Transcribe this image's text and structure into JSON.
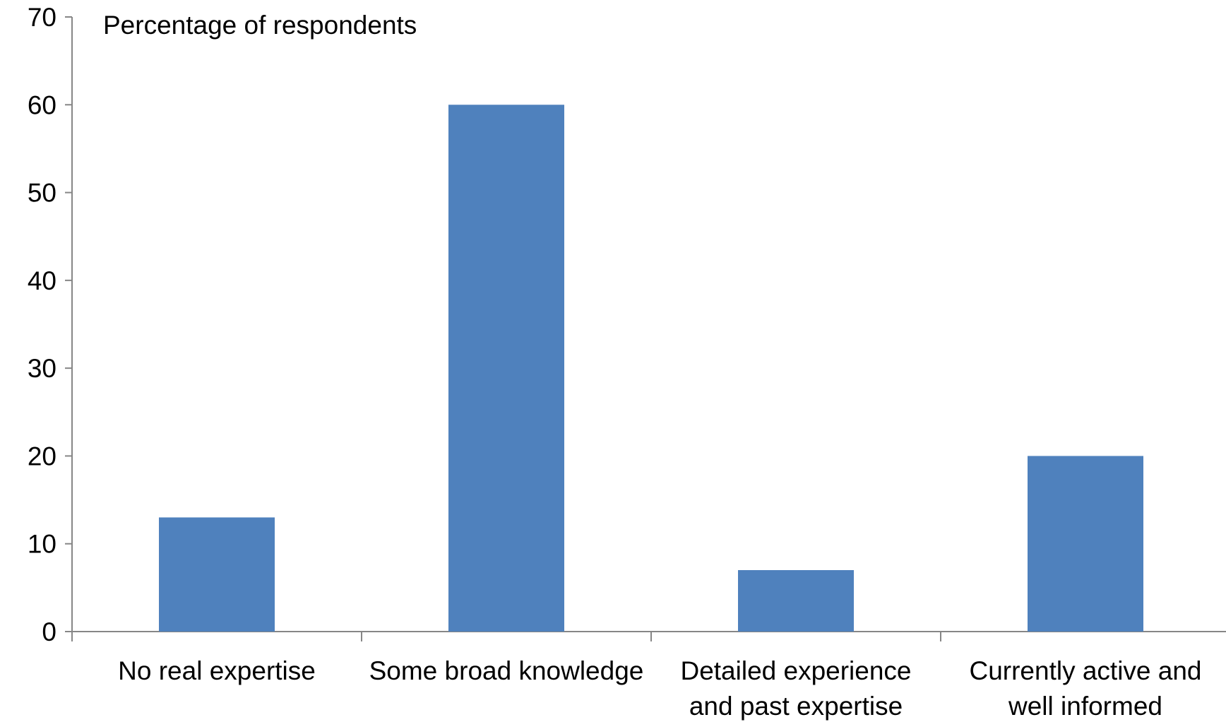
{
  "chart_data": {
    "type": "bar",
    "title": "Percentage of respondents",
    "xlabel": "",
    "ylabel": "",
    "categories": [
      [
        "No real expertise"
      ],
      [
        "Some broad knowledge"
      ],
      [
        "Detailed experience",
        "and past expertise"
      ],
      [
        "Currently active and",
        "well informed"
      ]
    ],
    "values": [
      13,
      60,
      7,
      20
    ],
    "ylim": [
      0,
      70
    ],
    "yticks": [
      "0",
      "10",
      "20",
      "30",
      "40",
      "50",
      "60",
      "70"
    ],
    "grid": false,
    "legend": "none",
    "bar_color": "#4F81BD",
    "axis_color": "#868686"
  }
}
